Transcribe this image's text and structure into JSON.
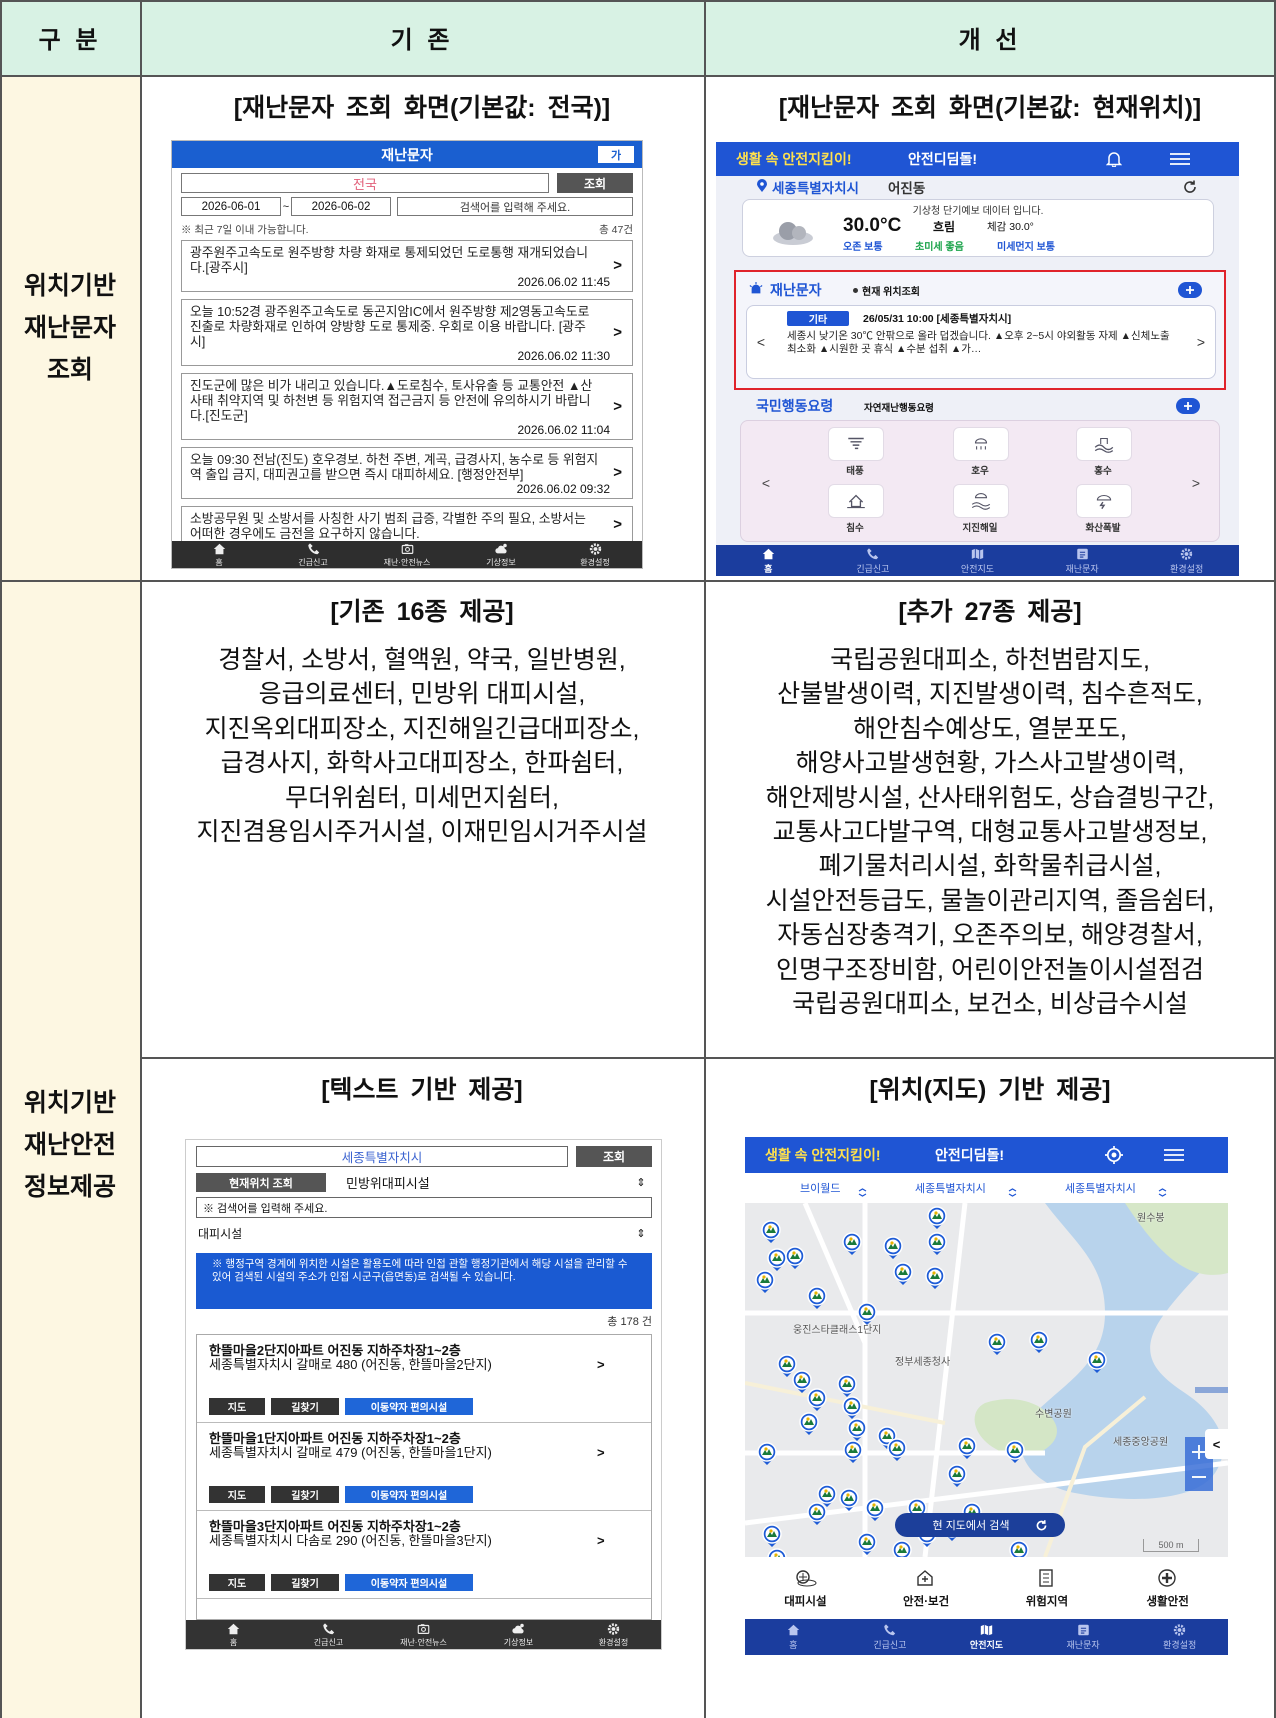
{
  "table": {
    "header": [
      "구 분",
      "기 존",
      "개 선"
    ],
    "rows": [
      {
        "label": [
          "위치기반",
          "재난문자",
          "조회"
        ],
        "before_title": "[재난문자 조회 화면(기본값: 전국)]",
        "after_title": "[재난문자 조회 화면(기본값: 현재위치)]"
      },
      {
        "label": [
          "위치기반",
          "재난안전",
          "정보제공"
        ],
        "before_title": "[기존 16종 제공]",
        "before_items": [
          "경찰서, 소방서, 혈액원, 약국, 일반병원,",
          "응급의료센터, 민방위 대피시설,",
          "지진옥외대피장소, 지진해일긴급대피장소,",
          "급경사지, 화학사고대피장소, 한파쉼터,",
          "무더위쉼터, 미세먼지쉼터,",
          "지진겸용임시주거시설, 이재민임시거주시설"
        ],
        "after_title": "[추가 27종 제공]",
        "after_items": [
          "국립공원대피소, 하천범람지도,",
          "산불발생이력, 지진발생이력, 침수흔적도,",
          "해안침수예상도, 열분포도,",
          "해양사고발생현황, 가스사고발생이력,",
          "해안제방시설, 산사태위험도, 상습결빙구간,",
          "교통사고다발구역, 대형교통사고발생정보,",
          "폐기물처리시설, 화학물취급시설,",
          "시설안전등급도, 물놀이관리지역, 졸음쉼터,",
          "자동심장충격기, 오존주의보, 해양경찰서,",
          "인명구조장비함, 어린이안전놀이시설점검",
          "국립공원대피소, 보건소, 비상급수시설"
        ]
      },
      {
        "before_title": "[텍스트 기반 제공]",
        "after_title": "[위치(지도) 기반 제공]"
      }
    ]
  },
  "screen_old_messages": {
    "title": "재난문자",
    "font_button": "가",
    "region": "전국",
    "search_button": "조회",
    "date_from": "2026-06-01",
    "date_sep": "~",
    "date_to": "2026-06-02",
    "search_placeholder": "검색어를 입력해 주세요.",
    "note": "※ 최근 7일 이내 가능합니다.",
    "count": "총 47건",
    "messages": [
      {
        "text": "광주원주고속도로 원주방향 차량 화재로 통제되었던 도로통행 재개되었습니다.[광주시]",
        "time": "2026.06.02 11:45"
      },
      {
        "text": "오늘 10:52경 광주원주고속도로 동곤지암IC에서 원주방향 제2영동고속도로 진출로 차량화재로 인하여 양방향 도로 통제중. 우회로 이용 바랍니다. [광주시]",
        "time": "2026.06.02 11:30"
      },
      {
        "text": "진도군에 많은 비가 내리고 있습니다.▲도로침수, 토사유출 등 교통안전 ▲산사태 취약지역 및 하천변 등 위험지역 접근금지 등 안전에 유의하시기 바랍니다.[진도군]",
        "time": "2026.06.02 11:04"
      },
      {
        "text": "오늘 09:30 전남(진도) 호우경보. 하천 주변, 계곡, 급경사지, 농수로 등 위험지역 출입 금지, 대피권고를 받으면 즉시 대피하세요. [행정안전부]",
        "time": "2026.06.02 09:32"
      },
      {
        "text": "소방공무원 및 소방서를 사칭한 사기 범죄 급증, 각별한 주의 필요, 소방서는 어떠한 경우에도 금전을 요구하지 않습니다."
      }
    ],
    "nav": [
      "홈",
      "긴급신고",
      "재난·안전뉴스",
      "기상정보",
      "환경설정"
    ]
  },
  "screen_new_messages": {
    "banner_highlight": "생활 속 안전지킴이!",
    "banner_app": "안전디딤돌!",
    "location_city": "세종특별자치시",
    "location_dong": "어진동",
    "weather_note": "기상청 단기예보 데이터 입니다.",
    "temperature": "30.0°C",
    "sky": "흐림",
    "feels_like": "체감 30.0°",
    "air": [
      "오존 보통",
      "초미세 좋음",
      "미세먼지 보통"
    ],
    "section_title": "재난문자",
    "section_sub": "현재 위치조회",
    "tag": "기타",
    "message_header": "26/05/31 10:00 [세종특별자치시]",
    "message_text": "세종시 낮기온 30℃ 안팎으로 올라 덥겠습니다. ▲오후 2~5시 야외활동 자제 ▲신체노출 최소화 ▲시원한 곳 휴식 ▲수분 섭취 ▲가…",
    "guide_title": "국민행동요령",
    "guide_sub": "자연재난행동요령",
    "guide_items": [
      "태풍",
      "호우",
      "홍수",
      "침수",
      "지진해일",
      "화산폭발"
    ],
    "nav": [
      "홈",
      "긴급신고",
      "안전지도",
      "재난문자",
      "환경설정"
    ]
  },
  "screen_text_facilities": {
    "region": "세종특별자치시",
    "search_button": "조회",
    "location_button": "현재위치 조회",
    "facility_group": "민방위대피시설",
    "search_placeholder": "※ 검색어를 입력해 주세요.",
    "facility_type": "대피시설",
    "notice": "※ 행정구역 경계에 위치한 시설은 활용도에 따라 인접 관할 행정기관에서 해당 시설을 관리할 수 있어 검색된 시설의 주소가 인접 시군구(읍면동)로 검색될 수 있습니다.",
    "count": "총 178 건",
    "items": [
      {
        "name": "한뜰마을2단지아파트 어진동 지하주차장1~2층",
        "address": "세종특별자치시 갈매로 480 (어진동, 한뜰마을2단지)"
      },
      {
        "name": "한뜰마을1단지아파트 어진동 지하주차장1~2층",
        "address": "세종특별자치시 갈매로 479 (어진동, 한뜰마을1단지)"
      },
      {
        "name": "한뜰마을3단지아파트 어진동 지하주차장1~2층",
        "address": "세종특별자치시 다솜로 290 (어진동, 한뜰마을3단지)"
      }
    ],
    "buttons": [
      "지도",
      "길찾기",
      "이동약자 편의시설"
    ],
    "nav": [
      "홈",
      "긴급신고",
      "재난·안전뉴스",
      "기상정보",
      "환경설정"
    ]
  },
  "screen_map_facilities": {
    "banner_highlight": "생활 속 안전지킴이!",
    "banner_app": "안전디딤돌!",
    "filters": [
      "브이월드",
      "세종특별자치시",
      "세종특별자치시"
    ],
    "map_labels": [
      "원수봉",
      "웅진스타클래스1단지",
      "정부세종청사",
      "수변공원",
      "세종중앙공원"
    ],
    "search_here": "현 지도에서 검색",
    "scale": "500 m",
    "categories": [
      "대피시설",
      "안전·보건",
      "위험지역",
      "생활안전"
    ],
    "nav": [
      "홈",
      "긴급신고",
      "안전지도",
      "재난문자",
      "환경설정"
    ]
  }
}
